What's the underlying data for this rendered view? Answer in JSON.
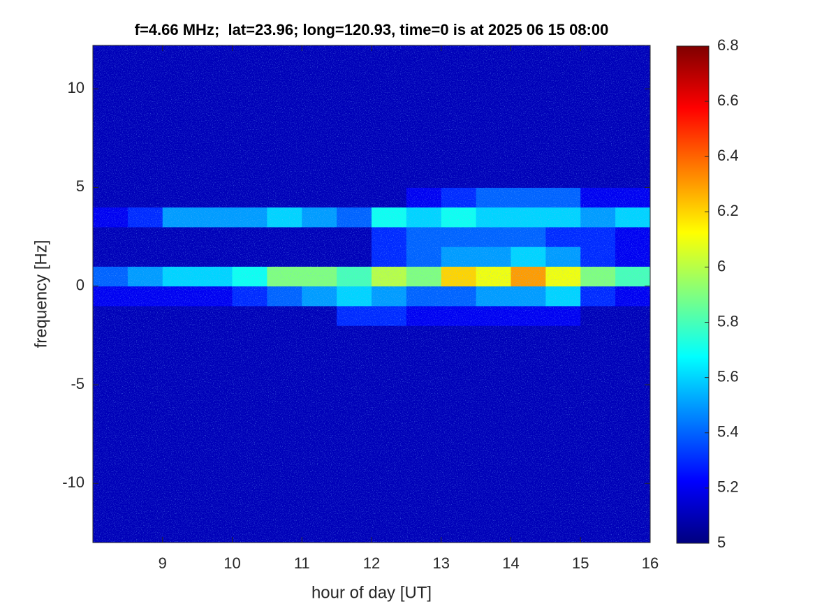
{
  "chart_data": {
    "type": "heatmap",
    "title": "f=4.66 MHz;  lat=23.96; long=120.93, time=0 is at 2025 06 15 08:00",
    "x_label": "hour of day [UT]",
    "y_label": "frequency [Hz]",
    "xlim": [
      8,
      16
    ],
    "ylim": [
      -13,
      12.2
    ],
    "xticks": [
      9,
      10,
      11,
      12,
      13,
      14,
      15,
      16
    ],
    "yticks": [
      -10,
      -5,
      0,
      5,
      10
    ],
    "colormap": "jet",
    "clim": [
      5,
      6.8
    ],
    "cticks": [
      5,
      5.2,
      5.4,
      5.6,
      5.8,
      6,
      6.2,
      6.4,
      6.6,
      6.8
    ],
    "x": [
      8.25,
      8.75,
      9.25,
      9.75,
      10.25,
      10.75,
      11.25,
      11.75,
      12.25,
      12.75,
      13.25,
      13.75,
      14.25,
      14.75,
      15.25,
      15.75
    ],
    "y": [
      -12.5,
      -11.5,
      -10.5,
      -9.5,
      -8.5,
      -7.5,
      -6.5,
      -5.5,
      -4.5,
      -3.5,
      -2.5,
      -1.5,
      -0.5,
      0.5,
      1.5,
      2.5,
      3.5,
      4.5,
      5.5,
      6.5,
      7.5,
      8.5,
      9.5,
      10.5,
      11.5
    ],
    "z": [
      [
        5.1,
        5.1,
        5.1,
        5.1,
        5.1,
        5.1,
        5.1,
        5.1,
        5.1,
        5.1,
        5.1,
        5.1,
        5.1,
        5.1,
        5.1,
        5.1
      ],
      [
        5.1,
        5.1,
        5.1,
        5.1,
        5.1,
        5.1,
        5.1,
        5.1,
        5.1,
        5.1,
        5.1,
        5.1,
        5.1,
        5.1,
        5.1,
        5.1
      ],
      [
        5.1,
        5.1,
        5.1,
        5.1,
        5.1,
        5.1,
        5.1,
        5.1,
        5.1,
        5.1,
        5.1,
        5.1,
        5.1,
        5.1,
        5.1,
        5.1
      ],
      [
        5.1,
        5.1,
        5.1,
        5.1,
        5.1,
        5.1,
        5.1,
        5.1,
        5.1,
        5.1,
        5.1,
        5.1,
        5.1,
        5.1,
        5.1,
        5.1
      ],
      [
        5.1,
        5.1,
        5.1,
        5.1,
        5.1,
        5.1,
        5.1,
        5.1,
        5.1,
        5.1,
        5.1,
        5.1,
        5.1,
        5.1,
        5.1,
        5.1
      ],
      [
        5.1,
        5.1,
        5.1,
        5.1,
        5.1,
        5.1,
        5.1,
        5.1,
        5.1,
        5.1,
        5.1,
        5.1,
        5.1,
        5.1,
        5.1,
        5.1
      ],
      [
        5.1,
        5.1,
        5.1,
        5.1,
        5.1,
        5.1,
        5.1,
        5.1,
        5.1,
        5.1,
        5.1,
        5.1,
        5.1,
        5.1,
        5.1,
        5.1
      ],
      [
        5.1,
        5.1,
        5.1,
        5.1,
        5.1,
        5.1,
        5.1,
        5.1,
        5.1,
        5.1,
        5.1,
        5.1,
        5.1,
        5.1,
        5.1,
        5.1
      ],
      [
        5.1,
        5.1,
        5.1,
        5.1,
        5.1,
        5.1,
        5.1,
        5.1,
        5.1,
        5.1,
        5.1,
        5.1,
        5.1,
        5.1,
        5.1,
        5.1
      ],
      [
        5.1,
        5.1,
        5.1,
        5.1,
        5.1,
        5.1,
        5.1,
        5.1,
        5.1,
        5.1,
        5.1,
        5.1,
        5.1,
        5.1,
        5.1,
        5.1
      ],
      [
        5.1,
        5.1,
        5.1,
        5.1,
        5.1,
        5.1,
        5.1,
        5.1,
        5.1,
        5.1,
        5.1,
        5.1,
        5.1,
        5.1,
        5.1,
        5.1
      ],
      [
        5.1,
        5.1,
        5.1,
        5.1,
        5.1,
        5.1,
        5.1,
        5.3,
        5.3,
        5.2,
        5.2,
        5.2,
        5.2,
        5.2,
        5.1,
        5.1
      ],
      [
        5.2,
        5.2,
        5.2,
        5.2,
        5.3,
        5.4,
        5.5,
        5.6,
        5.5,
        5.4,
        5.4,
        5.5,
        5.5,
        5.6,
        5.3,
        5.2
      ],
      [
        5.4,
        5.5,
        5.6,
        5.6,
        5.7,
        5.9,
        5.9,
        5.8,
        6.0,
        5.9,
        6.2,
        6.1,
        6.3,
        6.1,
        5.9,
        5.8
      ],
      [
        5.1,
        5.1,
        5.1,
        5.1,
        5.1,
        5.1,
        5.1,
        5.1,
        5.3,
        5.4,
        5.5,
        5.5,
        5.6,
        5.5,
        5.3,
        5.2
      ],
      [
        5.1,
        5.1,
        5.1,
        5.1,
        5.1,
        5.1,
        5.1,
        5.1,
        5.3,
        5.4,
        5.4,
        5.4,
        5.4,
        5.3,
        5.3,
        5.2
      ],
      [
        5.2,
        5.3,
        5.5,
        5.5,
        5.5,
        5.6,
        5.5,
        5.4,
        5.7,
        5.6,
        5.7,
        5.6,
        5.6,
        5.6,
        5.5,
        5.6
      ],
      [
        5.1,
        5.1,
        5.1,
        5.1,
        5.1,
        5.1,
        5.1,
        5.1,
        5.1,
        5.2,
        5.3,
        5.4,
        5.4,
        5.4,
        5.2,
        5.2
      ],
      [
        5.1,
        5.1,
        5.1,
        5.1,
        5.1,
        5.1,
        5.1,
        5.1,
        5.1,
        5.1,
        5.1,
        5.1,
        5.1,
        5.1,
        5.1,
        5.1
      ],
      [
        5.1,
        5.1,
        5.1,
        5.1,
        5.1,
        5.1,
        5.1,
        5.1,
        5.1,
        5.1,
        5.1,
        5.1,
        5.1,
        5.1,
        5.1,
        5.1
      ],
      [
        5.1,
        5.1,
        5.1,
        5.1,
        5.1,
        5.1,
        5.1,
        5.1,
        5.1,
        5.1,
        5.1,
        5.1,
        5.1,
        5.1,
        5.1,
        5.1
      ],
      [
        5.1,
        5.1,
        5.1,
        5.1,
        5.1,
        5.1,
        5.1,
        5.1,
        5.1,
        5.1,
        5.1,
        5.1,
        5.1,
        5.1,
        5.1,
        5.1
      ],
      [
        5.1,
        5.1,
        5.1,
        5.1,
        5.1,
        5.1,
        5.1,
        5.1,
        5.1,
        5.1,
        5.1,
        5.1,
        5.1,
        5.1,
        5.1,
        5.1
      ],
      [
        5.1,
        5.1,
        5.1,
        5.1,
        5.1,
        5.1,
        5.1,
        5.1,
        5.1,
        5.1,
        5.1,
        5.1,
        5.1,
        5.1,
        5.1,
        5.1
      ],
      [
        5.1,
        5.1,
        5.1,
        5.1,
        5.1,
        5.1,
        5.1,
        5.1,
        5.1,
        5.1,
        5.1,
        5.1,
        5.1,
        5.1,
        5.1,
        5.1
      ]
    ]
  }
}
